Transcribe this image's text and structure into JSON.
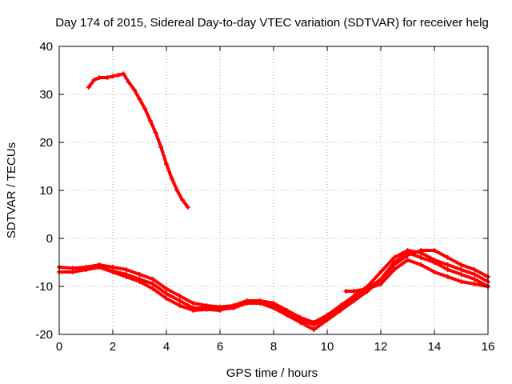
{
  "chart_data": {
    "type": "scatter",
    "title": "Day 174 of 2015, Sidereal Day-to-day VTEC variation (SDTVAR) for receiver helg",
    "xlabel": "GPS time / hours",
    "ylabel": "SDTVAR / TECUs",
    "xlim": [
      0,
      16
    ],
    "ylim": [
      -20,
      40
    ],
    "xticks": [
      0,
      2,
      4,
      6,
      8,
      10,
      12,
      14,
      16
    ],
    "yticks": [
      -20,
      -10,
      0,
      10,
      20,
      30,
      40
    ],
    "grid": true,
    "series_color": "#ff0000",
    "series": [
      {
        "name": "arc-high",
        "x": [
          1.1,
          1.3,
          1.5,
          1.8,
          2.0,
          2.2,
          2.4,
          2.6,
          2.8,
          3.0,
          3.2,
          3.4,
          3.6,
          3.8,
          4.0,
          4.2,
          4.4,
          4.6,
          4.8
        ],
        "y": [
          31.5,
          33.0,
          33.5,
          33.5,
          33.8,
          34.0,
          34.3,
          32.5,
          31.0,
          29.0,
          27.0,
          24.5,
          22.0,
          19.0,
          15.5,
          12.5,
          10.0,
          8.0,
          6.5
        ]
      },
      {
        "name": "arc-a",
        "x": [
          0.0,
          0.5,
          1.0,
          1.5,
          2.0,
          2.5,
          3.0,
          3.5,
          4.0,
          4.5,
          5.0,
          5.5,
          6.0,
          6.5,
          7.0,
          7.5,
          8.0,
          8.5,
          9.0,
          9.5,
          10.0,
          10.5,
          11.0,
          11.5,
          12.0,
          12.5,
          13.0,
          13.5,
          14.0,
          14.5,
          15.0,
          15.5,
          16.0
        ],
        "y": [
          -6.0,
          -6.2,
          -6.0,
          -5.5,
          -6.0,
          -6.5,
          -7.5,
          -8.5,
          -10.5,
          -12.0,
          -13.5,
          -14.0,
          -14.3,
          -14.0,
          -13.0,
          -13.0,
          -13.5,
          -15.0,
          -16.5,
          -17.5,
          -16.0,
          -14.0,
          -12.0,
          -10.0,
          -7.0,
          -4.0,
          -2.5,
          -3.0,
          -4.5,
          -5.5,
          -6.5,
          -7.5,
          -9.0
        ]
      },
      {
        "name": "arc-b",
        "x": [
          0.0,
          0.5,
          1.0,
          1.5,
          2.0,
          2.5,
          3.0,
          3.5,
          4.0,
          4.5,
          5.0,
          5.5,
          6.0,
          6.5,
          7.0,
          7.5,
          8.0,
          8.5,
          9.0,
          9.5,
          10.0,
          10.5,
          11.0,
          11.5,
          12.0,
          12.5,
          13.0,
          13.5,
          14.0,
          14.5,
          15.0,
          15.5,
          16.0
        ],
        "y": [
          -7.0,
          -7.0,
          -6.5,
          -6.0,
          -6.8,
          -7.5,
          -8.5,
          -9.5,
          -11.5,
          -13.0,
          -14.5,
          -14.5,
          -14.8,
          -14.5,
          -13.5,
          -13.5,
          -14.5,
          -16.0,
          -17.5,
          -19.0,
          -17.0,
          -15.0,
          -13.0,
          -11.0,
          -8.5,
          -5.0,
          -3.0,
          -4.0,
          -5.0,
          -6.5,
          -7.5,
          -8.5,
          -10.0
        ]
      },
      {
        "name": "arc-c",
        "x": [
          1.0,
          1.5,
          2.0,
          2.5,
          3.0,
          3.5,
          4.0,
          4.5,
          5.0,
          5.5,
          6.0,
          6.5,
          7.0,
          7.5,
          8.0,
          8.5,
          9.0,
          9.5,
          10.0,
          10.5,
          11.0,
          11.5,
          12.0,
          12.5,
          13.0,
          13.5,
          14.0,
          14.5,
          15.0,
          15.5,
          16.0
        ],
        "y": [
          -6.5,
          -6.0,
          -7.0,
          -8.0,
          -9.0,
          -10.5,
          -12.5,
          -14.0,
          -15.0,
          -14.8,
          -15.0,
          -14.0,
          -13.5,
          -13.5,
          -14.0,
          -15.5,
          -17.0,
          -18.0,
          -16.5,
          -14.5,
          -12.5,
          -10.5,
          -9.5,
          -6.5,
          -4.5,
          -5.5,
          -7.0,
          -8.0,
          -9.0,
          -9.5,
          -10.0
        ]
      },
      {
        "name": "arc-late",
        "x": [
          10.7,
          11.0,
          11.5,
          12.0,
          12.5,
          13.0,
          13.5,
          14.0,
          14.5,
          15.0,
          15.5,
          16.0
        ],
        "y": [
          -11.0,
          -11.0,
          -10.5,
          -8.5,
          -5.5,
          -3.5,
          -2.5,
          -2.5,
          -4.0,
          -5.5,
          -6.5,
          -8.0
        ]
      }
    ]
  }
}
